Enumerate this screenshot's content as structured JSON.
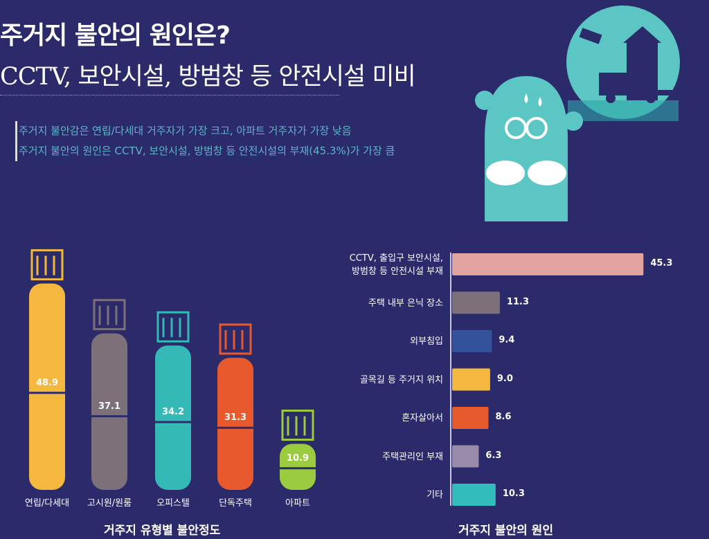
{
  "header": {
    "title": "주거지 불안의 원인은?",
    "subtitle": "CCTV, 보안시설, 방범창 등 안전시설 미비",
    "points": [
      "주거지 불안감은 연립/다세대 거주자가 가장 크고, 아파트 거주자가 가장 낮음",
      "주거지 불안의 원인은 CCTV, 보안시설, 방범창 등 안전시설의 부재(45.3%)가 가장 큼"
    ]
  },
  "chart_data": [
    {
      "type": "bar",
      "orientation": "vertical",
      "title": "거주지 유형별 불안정도",
      "categories": [
        "연립/다세대",
        "고시원/원룸",
        "오피스텔",
        "단독주택",
        "아파트"
      ],
      "values": [
        48.9,
        37.1,
        34.2,
        31.3,
        10.9
      ],
      "colors": [
        "#f3b83d",
        "#7e7079",
        "#35b9b6",
        "#e85a2d",
        "#9bcb3e"
      ]
    },
    {
      "type": "bar",
      "orientation": "horizontal",
      "title": "거주지 불안의 원인",
      "categories": [
        "CCTV, 출입구 보안시설,\n방범창 등 안전시설 부재",
        "주택 내부 은닉 장소",
        "외부침입",
        "골목길 등 주거지 위치",
        "혼자살아서",
        "주택관리인 부재",
        "기타"
      ],
      "values": [
        45.3,
        11.3,
        9.4,
        9.0,
        8.6,
        6.3,
        10.3
      ],
      "colors": [
        "#e0a39f",
        "#7e7078",
        "#34519b",
        "#f3b83d",
        "#e65b2c",
        "#9a8bab",
        "#33bcbc"
      ]
    }
  ]
}
